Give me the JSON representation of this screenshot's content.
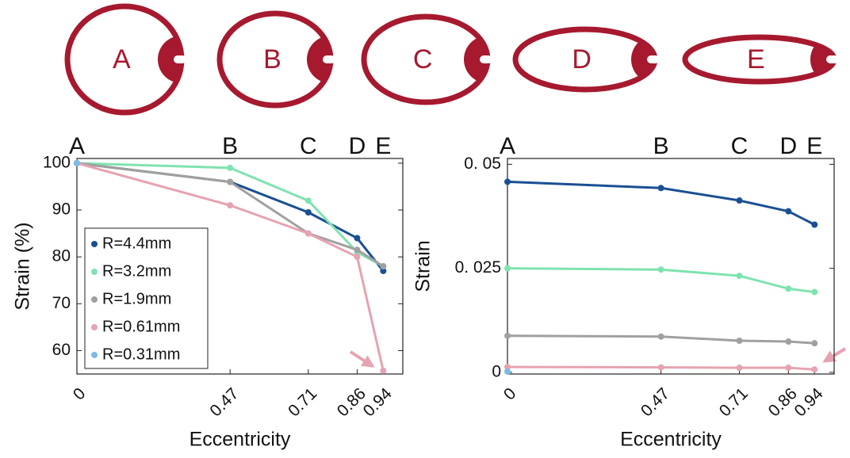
{
  "schematic": {
    "labels": [
      "A",
      "B",
      "C",
      "D",
      "E"
    ]
  },
  "chart_data": [
    {
      "type": "line",
      "ylabel": "Strain (%)",
      "xlabel": "Eccentricity",
      "letters": [
        "A",
        "B",
        "C",
        "D",
        "E"
      ],
      "x": [
        0,
        0.47,
        0.71,
        0.86,
        0.94
      ],
      "xlim": [
        0,
        1
      ],
      "xticks": [
        0,
        0.47,
        0.71,
        0.86,
        0.94
      ],
      "ylim": [
        55,
        101
      ],
      "yticks": [
        60,
        70,
        80,
        90,
        100
      ],
      "legend": "lower-left",
      "series": [
        {
          "name": "R=4.4mm",
          "color": "#1a4f93",
          "values": [
            100,
            96,
            89.5,
            84,
            77
          ]
        },
        {
          "name": "R=3.2mm",
          "color": "#7fe3b0",
          "values": [
            100,
            99,
            92,
            81,
            78
          ]
        },
        {
          "name": "R=1.9mm",
          "color": "#a0a0a0",
          "values": [
            100,
            96,
            85,
            81.5,
            78
          ]
        },
        {
          "name": "R=0.61mm",
          "color": "#e6a3b0",
          "values": [
            100,
            91,
            85,
            80,
            55.7
          ]
        },
        {
          "name": "R=0.31mm",
          "color": "#7bbce6",
          "values": [
            100,
            null,
            null,
            null,
            null
          ]
        }
      ]
    },
    {
      "type": "line",
      "ylabel": "Strain",
      "xlabel": "Eccentricity",
      "letters": [
        "A",
        "B",
        "C",
        "D",
        "E"
      ],
      "x": [
        0,
        0.47,
        0.71,
        0.86,
        0.94
      ],
      "xlim": [
        0,
        1
      ],
      "xticks": [
        0,
        0.47,
        0.71,
        0.86,
        0.94
      ],
      "ylim": [
        -0.0004,
        0.0514
      ],
      "yticks": [
        0,
        {
          "value": 0.025,
          "label": "0. 025"
        },
        {
          "value": 0.05,
          "label": "0. 05"
        }
      ],
      "series": [
        {
          "color": "#1a4f93",
          "values": [
            0.0458,
            0.0443,
            0.0413,
            0.0387,
            0.0355
          ]
        },
        {
          "color": "#7fe3b0",
          "values": [
            0.025,
            0.0247,
            0.0232,
            0.0201,
            0.0193
          ]
        },
        {
          "color": "#a0a0a0",
          "values": [
            0.0088,
            0.0086,
            0.0076,
            0.0074,
            0.007
          ]
        },
        {
          "color": "#e6a3b0",
          "values": [
            0.0013,
            0.0012,
            0.0011,
            0.0011,
            0.0007
          ]
        },
        {
          "color": "#7bbce6",
          "values": [
            0.0002,
            null,
            null,
            null,
            null
          ]
        }
      ]
    }
  ]
}
